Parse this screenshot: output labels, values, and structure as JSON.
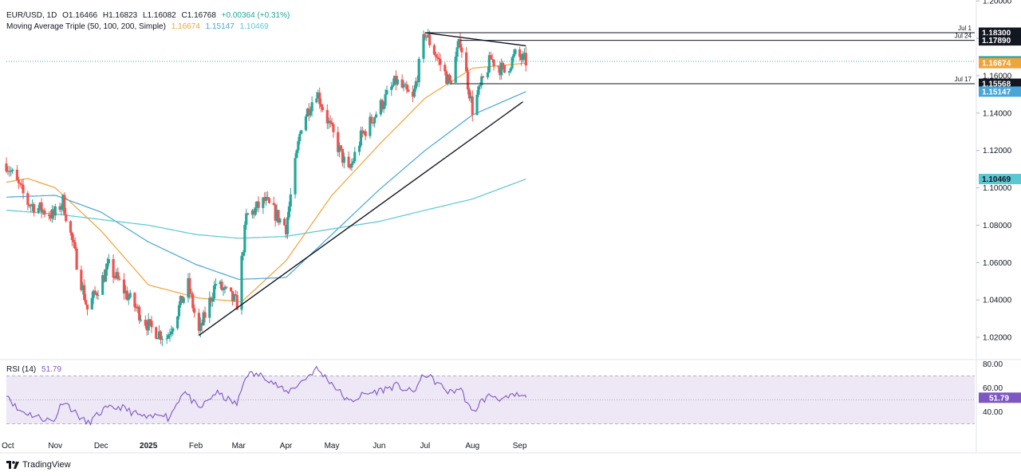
{
  "header": {
    "symbol": "EUR/USD, 1D",
    "open": "O1.16466",
    "high": "H1.16823",
    "low": "L1.16082",
    "close": "C1.16768",
    "change": "+0.00364 (+0.31%)",
    "ma_title": "Moving Average Triple (50, 100, 200, Simple)",
    "ma50": "1.16674",
    "ma100": "1.15147",
    "ma200": "1.10469",
    "rsi_title": "RSI (14)",
    "rsi_value": "51.79"
  },
  "branding": {
    "logo_text": "TradingView"
  },
  "colors": {
    "up": "#26a69a",
    "down": "#ef5350",
    "ma50": "#f2a23a",
    "ma100": "#4aa5d8",
    "ma200": "#5ac7d2",
    "rsi": "#7e57c2",
    "rsi_band": "#ede7f6",
    "price_tag": "#26a69a",
    "trendline": "#131722"
  },
  "chart_data": [
    {
      "type": "candlestick",
      "title": "EUR/USD, 1D",
      "x_ticks": [
        "Oct",
        "Nov",
        "Dec",
        "2025",
        "Feb",
        "Mar",
        "Apr",
        "May",
        "Jun",
        "Jul",
        "Aug",
        "Sep"
      ],
      "y_ticks": [
        "1.20000",
        "1.18000",
        "1.16000",
        "1.14000",
        "1.12000",
        "1.10000",
        "1.08000",
        "1.06000",
        "1.04000",
        "1.02000"
      ],
      "ylim": [
        1.0085,
        1.2005
      ],
      "price_labels": [
        {
          "text": "1.18300",
          "value": 1.183,
          "kind": "level",
          "note": "Jul 1"
        },
        {
          "text": "1.17890",
          "value": 1.1789,
          "kind": "level",
          "note": "Jul 24"
        },
        {
          "text": "1.16768",
          "value": 1.16768,
          "kind": "last"
        },
        {
          "text": "1.16674",
          "value": 1.16674,
          "kind": "ma50"
        },
        {
          "text": "1.15568",
          "value": 1.15568,
          "kind": "level",
          "note": "Jul 17"
        },
        {
          "text": "1.15147",
          "value": 1.15147,
          "kind": "ma100"
        },
        {
          "text": "1.10469",
          "value": 1.10469,
          "kind": "ma200"
        }
      ],
      "price_path": [
        [
          "Sep 30",
          1.113
        ],
        [
          "Oct 14",
          1.092
        ],
        [
          "Oct 31",
          1.085
        ],
        [
          "Nov 6",
          1.093
        ],
        [
          "Nov 22",
          1.035
        ],
        [
          "Dec 6",
          1.058
        ],
        [
          "Dec 20",
          1.04
        ],
        [
          "Jan 2",
          1.025
        ],
        [
          "Jan 13",
          1.02
        ],
        [
          "Jan 27",
          1.048
        ],
        [
          "Feb 3",
          1.022
        ],
        [
          "Feb 14",
          1.049
        ],
        [
          "Feb 28",
          1.038
        ],
        [
          "Mar 6",
          1.084
        ],
        [
          "Mar 18",
          1.093
        ],
        [
          "Apr 1",
          1.079
        ],
        [
          "Apr 11",
          1.134
        ],
        [
          "Apr 21",
          1.152
        ],
        [
          "May 1",
          1.13
        ],
        [
          "May 12",
          1.108
        ],
        [
          "May 20",
          1.127
        ],
        [
          "Jun 2",
          1.144
        ],
        [
          "Jun 12",
          1.157
        ],
        [
          "Jun 23",
          1.147
        ],
        [
          "Jul 1",
          1.183
        ],
        [
          "Jul 17",
          1.156
        ],
        [
          "Jul 24",
          1.179
        ],
        [
          "Aug 1",
          1.142
        ],
        [
          "Aug 13",
          1.169
        ],
        [
          "Aug 22",
          1.162
        ],
        [
          "Aug 29",
          1.171
        ],
        [
          "Sep 5",
          1.1677
        ]
      ],
      "series": [
        {
          "name": "50",
          "values": [
            [
              "Sep 30",
              1.103
            ],
            [
              "Oct 14",
              1.105
            ],
            [
              "Nov 1",
              1.1
            ],
            [
              "Dec 1",
              1.077
            ],
            [
              "Jan 1",
              1.048
            ],
            [
              "Feb 3",
              1.041
            ],
            [
              "Mar 3",
              1.039
            ],
            [
              "Apr 1",
              1.061
            ],
            [
              "May 1",
              1.096
            ],
            [
              "Jun 2",
              1.124
            ],
            [
              "Jul 1",
              1.148
            ],
            [
              "Aug 1",
              1.164
            ],
            [
              "Sep 5",
              1.16674
            ]
          ]
        },
        {
          "name": "100",
          "values": [
            [
              "Sep 30",
              1.095
            ],
            [
              "Nov 1",
              1.096
            ],
            [
              "Dec 1",
              1.087
            ],
            [
              "Jan 1",
              1.071
            ],
            [
              "Feb 1",
              1.059
            ],
            [
              "Mar 1",
              1.051
            ],
            [
              "Apr 1",
              1.052
            ],
            [
              "May 1",
              1.075
            ],
            [
              "Jun 1",
              1.099
            ],
            [
              "Jul 1",
              1.12
            ],
            [
              "Aug 1",
              1.139
            ],
            [
              "Sep 5",
              1.15147
            ]
          ]
        },
        {
          "name": "200",
          "values": [
            [
              "Sep 30",
              1.088
            ],
            [
              "Nov 1",
              1.086
            ],
            [
              "Dec 1",
              1.083
            ],
            [
              "Jan 1",
              1.08
            ],
            [
              "Feb 1",
              1.075
            ],
            [
              "Mar 1",
              1.073
            ],
            [
              "Apr 1",
              1.074
            ],
            [
              "May 1",
              1.078
            ],
            [
              "Jun 1",
              1.082
            ],
            [
              "Jul 1",
              1.088
            ],
            [
              "Aug 1",
              1.094
            ],
            [
              "Sep 5",
              1.10469
            ]
          ]
        }
      ],
      "trendlines": [
        {
          "from": [
            "Feb 3",
            1.021
          ],
          "to": [
            "Sep 3",
            1.146
          ]
        },
        {
          "from": [
            "Jul 1",
            1.183
          ],
          "to": [
            "Sep 5",
            1.176
          ]
        }
      ],
      "levels": [
        {
          "label": "Jul 1",
          "value": 1.183
        },
        {
          "label": "Jul 24",
          "value": 1.1789
        },
        {
          "label": "Jul 17",
          "value": 1.15568
        }
      ]
    },
    {
      "type": "line",
      "title": "RSI (14)",
      "y_ticks": [
        "80.00",
        "60.00",
        "40.00"
      ],
      "ylim": [
        21,
        83
      ],
      "bands": [
        70,
        30
      ],
      "midline": 50,
      "last": 51.79,
      "series": [
        {
          "name": "RSI (14)",
          "values": [
            [
              "Sep 30",
              56
            ],
            [
              "Oct 7",
              42
            ],
            [
              "Oct 20",
              36
            ],
            [
              "Oct 31",
              32
            ],
            [
              "Nov 6",
              50
            ],
            [
              "Nov 15",
              38
            ],
            [
              "Nov 22",
              30
            ],
            [
              "Dec 3",
              42
            ],
            [
              "Dec 14",
              44
            ],
            [
              "Dec 24",
              38
            ],
            [
              "Jan 2",
              34
            ],
            [
              "Jan 10",
              40
            ],
            [
              "Jan 14",
              34
            ],
            [
              "Jan 24",
              58
            ],
            [
              "Feb 3",
              42
            ],
            [
              "Feb 14",
              56
            ],
            [
              "Feb 28",
              46
            ],
            [
              "Mar 6",
              72
            ],
            [
              "Mar 18",
              70
            ],
            [
              "Apr 1",
              56
            ],
            [
              "Apr 10",
              64
            ],
            [
              "Apr 21",
              76
            ],
            [
              "May 1",
              64
            ],
            [
              "May 12",
              48
            ],
            [
              "May 21",
              54
            ],
            [
              "Jun 2",
              58
            ],
            [
              "Jun 12",
              62
            ],
            [
              "Jun 23",
              56
            ],
            [
              "Jul 1",
              72
            ],
            [
              "Jul 17",
              56
            ],
            [
              "Jul 24",
              60
            ],
            [
              "Aug 1",
              38
            ],
            [
              "Aug 6",
              48
            ],
            [
              "Aug 13",
              54
            ],
            [
              "Aug 22",
              50
            ],
            [
              "Aug 29",
              54
            ],
            [
              "Sep 5",
              51.79
            ]
          ]
        }
      ]
    }
  ]
}
